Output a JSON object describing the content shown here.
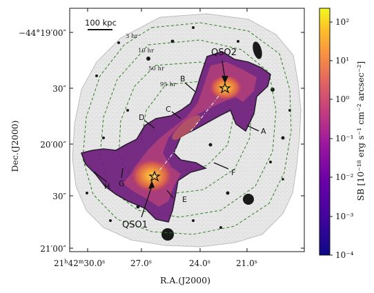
{
  "figure": {
    "xlabel": "R.A.(J2000)",
    "ylabel": "Dec.(J2000)",
    "ra_ticks": [
      {
        "pre": "21",
        "h": "h",
        "mid": "42",
        "m": "m",
        "sec": "30.0",
        "s": "s"
      },
      {
        "pre": "",
        "h": "",
        "mid": "",
        "m": "",
        "sec": "27.0",
        "s": "s"
      },
      {
        "pre": "",
        "h": "",
        "mid": "",
        "m": "",
        "sec": "24.0",
        "s": "s"
      },
      {
        "pre": "",
        "h": "",
        "mid": "",
        "m": "",
        "sec": "21.0",
        "s": "s"
      }
    ],
    "dec_ticks": [
      "−44°19′00″",
      "30″",
      "20′00″",
      "30″",
      "21′00″"
    ],
    "scale_bar": "100 kpc",
    "exposure_contours": [
      "3 hr",
      "10 hr",
      "50 hr",
      "95 hr"
    ],
    "regions": [
      "A",
      "B",
      "C",
      "D",
      "E",
      "F",
      "G",
      "H"
    ],
    "qsos": [
      "QSO1",
      "QSO2"
    ],
    "colorbar": {
      "label": "SB [10⁻¹⁸ erg s⁻¹ cm⁻² arcsec⁻²]",
      "ticks": [
        "10²",
        "10¹",
        "10⁰",
        "10⁻¹",
        "10⁻²",
        "10⁻³",
        "10⁻⁴"
      ]
    }
  },
  "colors": {
    "background_image": "#e4e4e4",
    "exposure_contour": "#2e7d1e",
    "nebula_outer": "#6a1b74",
    "nebula_inner": "#f5a23a",
    "qso_star": "#ffd84a"
  }
}
